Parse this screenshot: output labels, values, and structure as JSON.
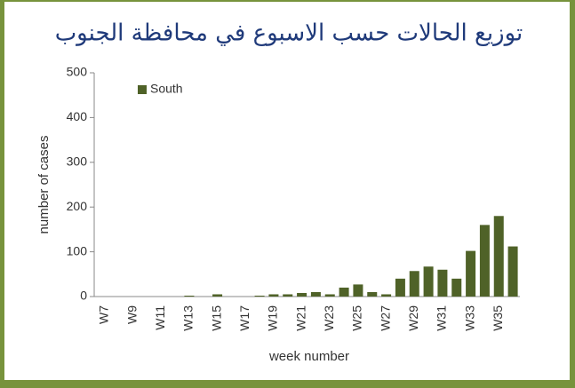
{
  "chart_data": {
    "type": "bar",
    "title": "توزيع الحالات حسب الاسبوع  في محافظة الجنوب",
    "categories": [
      "W7",
      null,
      "W9",
      null,
      "W11",
      null,
      "W13",
      null,
      "W15",
      null,
      "W17",
      null,
      "W19",
      null,
      "W21",
      null,
      "W23",
      null,
      "W25",
      null,
      "W27",
      null,
      "W29",
      null,
      "W31",
      null,
      "W33",
      null,
      "W35",
      null
    ],
    "series": [
      {
        "name": "South",
        "color": "#4f6228",
        "values": [
          0,
          0,
          0,
          0,
          0,
          0,
          2,
          0,
          5,
          0,
          0,
          2,
          5,
          5,
          8,
          10,
          5,
          20,
          27,
          10,
          5,
          40,
          57,
          67,
          60,
          40,
          102,
          160,
          180,
          112
        ]
      }
    ],
    "ylim": [
      0,
      500
    ],
    "yticks": [
      0,
      100,
      200,
      300,
      400,
      500
    ],
    "xlabel": "week number",
    "ylabel": "number of cases",
    "legend": "upper left"
  }
}
